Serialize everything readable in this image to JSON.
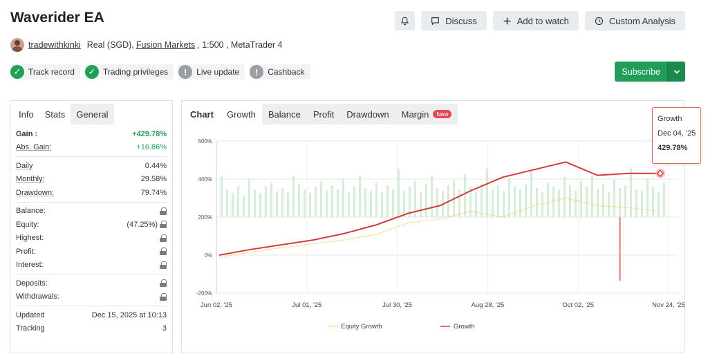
{
  "header": {
    "title": "Waverider EA",
    "buttons": {
      "discuss": "Discuss",
      "add_watch": "Add to watch",
      "custom": "Custom Analysis"
    }
  },
  "meta": {
    "user": "tradewithkinki",
    "account_type": "Real (SGD),",
    "broker": "Fusion Markets",
    "rest": ", 1:500 , MetaTrader 4"
  },
  "badges": [
    {
      "label": "Track record",
      "icon": "check-icon",
      "state": "green"
    },
    {
      "label": "Trading privileges",
      "icon": "check-icon",
      "state": "green"
    },
    {
      "label": "Live update",
      "icon": "exclamation-icon",
      "state": "grey"
    },
    {
      "label": "Cashback",
      "icon": "exclamation-icon",
      "state": "grey"
    }
  ],
  "subscribe": {
    "label": "Subscribe"
  },
  "left_tabs": [
    "Info",
    "Stats",
    "General"
  ],
  "stats": {
    "gain": {
      "k": "Gain :",
      "v": "+429.78%"
    },
    "abs_gain": {
      "k": "Abs. Gain:",
      "v": "+16.86%"
    },
    "daily": {
      "k": "Daily",
      "v": "0.44%"
    },
    "monthly": {
      "k": "Monthly:",
      "v": "29.58%"
    },
    "drawdown": {
      "k": "Drawdown:",
      "v": "79.74%"
    },
    "balance": {
      "k": "Balance:"
    },
    "equity": {
      "k": "Equity:",
      "v": "(47.25%)"
    },
    "highest": {
      "k": "Highest:"
    },
    "profit": {
      "k": "Profit:"
    },
    "interest": {
      "k": "Interest:"
    },
    "deposits": {
      "k": "Deposits:"
    },
    "withdrawals": {
      "k": "Withdrawals:"
    },
    "updated": {
      "k": "Updated",
      "v": "Dec 15, 2025 at 10:13"
    },
    "tracking": {
      "k": "Tracking",
      "v": "3"
    }
  },
  "chart_tabs": {
    "label": "Chart",
    "items": [
      "Growth",
      "Balance",
      "Profit",
      "Drawdown",
      "Margin"
    ],
    "new_badge": "New"
  },
  "tooltip": {
    "title": "Growth",
    "date": "Dec 04, '25",
    "value": "429.78%"
  },
  "colors": {
    "accent_green": "#1f9d59",
    "growth_line": "#d63a3a",
    "equity_line": "#f0c040",
    "bars": "#c8e8c8"
  },
  "chart_data": {
    "type": "line",
    "xlabel": "",
    "ylabel": "",
    "ylim": [
      -200,
      600
    ],
    "yticks": [
      "600%",
      "400%",
      "200%",
      "0%",
      "-200%"
    ],
    "xticks": [
      "Jun 02, '25",
      "Jul 01, '25",
      "Jul 30, '25",
      "Aug 28, '25",
      "Oct 02, '25",
      "Nov 24, '25"
    ],
    "legend": [
      "Equity Growth",
      "Growth"
    ],
    "series": [
      {
        "name": "Growth",
        "x": [
          "Jun 02",
          "Jun 16",
          "Jul 01",
          "Jul 15",
          "Jul 30",
          "Aug 14",
          "Aug 28",
          "Sep 10",
          "Sep 20",
          "Oct 02",
          "Oct 15",
          "Oct 25",
          "Nov 01",
          "Nov 24",
          "Dec 04"
        ],
        "values": [
          0,
          30,
          55,
          80,
          115,
          160,
          220,
          260,
          340,
          410,
          450,
          490,
          420,
          430,
          429.78
        ]
      },
      {
        "name": "Equity Growth",
        "x": [
          "Jun 02",
          "Jun 16",
          "Jul 01",
          "Jul 15",
          "Jul 30",
          "Aug 14",
          "Aug 28",
          "Sep 10",
          "Sep 20",
          "Oct 02",
          "Oct 15",
          "Oct 25",
          "Nov 01",
          "Nov 24",
          "Dec 04"
        ],
        "values": [
          -10,
          15,
          40,
          60,
          80,
          110,
          170,
          190,
          230,
          200,
          260,
          300,
          260,
          250,
          230
        ]
      }
    ]
  }
}
